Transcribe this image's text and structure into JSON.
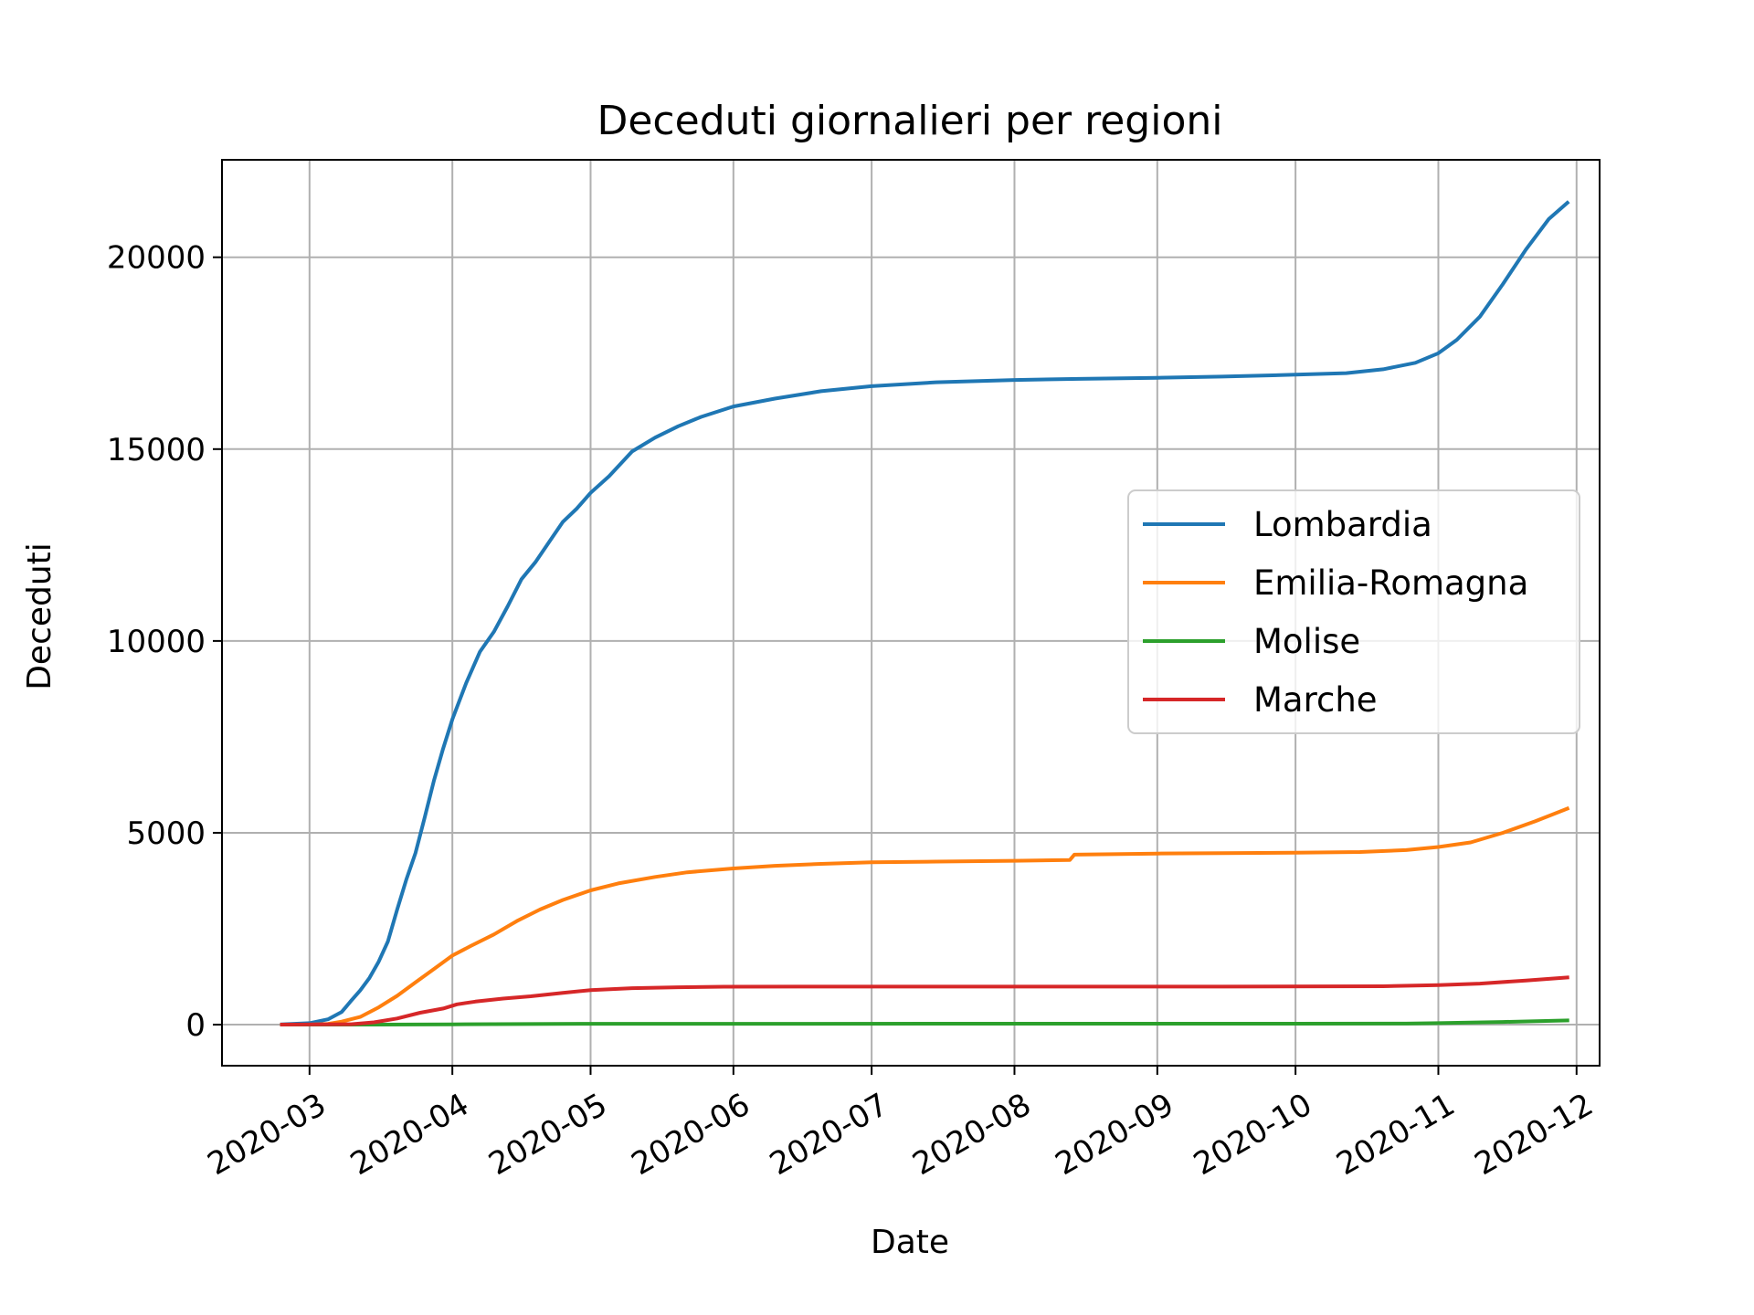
{
  "chart_data": {
    "type": "line",
    "title": "Deceduti giornalieri per regioni",
    "xlabel": "Date",
    "ylabel": "Deceduti",
    "x_axis": {
      "type": "date",
      "range": [
        "2020-02-11",
        "2020-12-06"
      ],
      "ticks": [
        "2020-03-01",
        "2020-04-01",
        "2020-05-01",
        "2020-06-01",
        "2020-07-01",
        "2020-08-01",
        "2020-09-01",
        "2020-10-01",
        "2020-11-01",
        "2020-12-01"
      ],
      "tick_labels": [
        "2020-03",
        "2020-04",
        "2020-05",
        "2020-06",
        "2020-07",
        "2020-08",
        "2020-09",
        "2020-10",
        "2020-11",
        "2020-12"
      ]
    },
    "y_axis": {
      "range": [
        -1070,
        22540
      ],
      "ticks": [
        0,
        5000,
        10000,
        15000,
        20000
      ],
      "tick_labels": [
        "0",
        "5000",
        "10000",
        "15000",
        "20000"
      ]
    },
    "grid": true,
    "legend_position": "center-right",
    "series": [
      {
        "name": "Lombardia",
        "color": "#1f77b4",
        "points": [
          [
            "2020-02-24",
            6
          ],
          [
            "2020-03-01",
            38
          ],
          [
            "2020-03-05",
            140
          ],
          [
            "2020-03-08",
            333
          ],
          [
            "2020-03-10",
            617
          ],
          [
            "2020-03-12",
            890
          ],
          [
            "2020-03-14",
            1218
          ],
          [
            "2020-03-16",
            1640
          ],
          [
            "2020-03-18",
            2168
          ],
          [
            "2020-03-20",
            2994
          ],
          [
            "2020-03-22",
            3776
          ],
          [
            "2020-03-24",
            4474
          ],
          [
            "2020-03-26",
            5402
          ],
          [
            "2020-03-28",
            6360
          ],
          [
            "2020-03-30",
            7199
          ],
          [
            "2020-04-01",
            7960
          ],
          [
            "2020-04-04",
            8905
          ],
          [
            "2020-04-07",
            9722
          ],
          [
            "2020-04-10",
            10238
          ],
          [
            "2020-04-13",
            10901
          ],
          [
            "2020-04-16",
            11608
          ],
          [
            "2020-04-19",
            12050
          ],
          [
            "2020-04-22",
            12579
          ],
          [
            "2020-04-25",
            13106
          ],
          [
            "2020-04-28",
            13449
          ],
          [
            "2020-05-01",
            13860
          ],
          [
            "2020-05-05",
            14294
          ],
          [
            "2020-05-10",
            14937
          ],
          [
            "2020-05-15",
            15299
          ],
          [
            "2020-05-20",
            15596
          ],
          [
            "2020-05-25",
            15840
          ],
          [
            "2020-06-01",
            16112
          ],
          [
            "2020-06-10",
            16317
          ],
          [
            "2020-06-20",
            16510
          ],
          [
            "2020-07-01",
            16640
          ],
          [
            "2020-07-15",
            16742
          ],
          [
            "2020-08-01",
            16802
          ],
          [
            "2020-08-15",
            16830
          ],
          [
            "2020-09-01",
            16860
          ],
          [
            "2020-09-15",
            16890
          ],
          [
            "2020-10-01",
            16940
          ],
          [
            "2020-10-12",
            16980
          ],
          [
            "2020-10-20",
            17080
          ],
          [
            "2020-10-27",
            17250
          ],
          [
            "2020-11-01",
            17500
          ],
          [
            "2020-11-05",
            17850
          ],
          [
            "2020-11-10",
            18450
          ],
          [
            "2020-11-15",
            19300
          ],
          [
            "2020-11-20",
            20200
          ],
          [
            "2020-11-25",
            21000
          ],
          [
            "2020-11-29",
            21420
          ]
        ]
      },
      {
        "name": "Emilia-Romagna",
        "color": "#ff7f0e",
        "points": [
          [
            "2020-02-24",
            0
          ],
          [
            "2020-03-01",
            2
          ],
          [
            "2020-03-05",
            20
          ],
          [
            "2020-03-08",
            80
          ],
          [
            "2020-03-12",
            200
          ],
          [
            "2020-03-16",
            450
          ],
          [
            "2020-03-20",
            750
          ],
          [
            "2020-03-24",
            1100
          ],
          [
            "2020-03-28",
            1450
          ],
          [
            "2020-04-01",
            1800
          ],
          [
            "2020-04-05",
            2050
          ],
          [
            "2020-04-10",
            2350
          ],
          [
            "2020-04-15",
            2700
          ],
          [
            "2020-04-20",
            3000
          ],
          [
            "2020-04-25",
            3250
          ],
          [
            "2020-05-01",
            3500
          ],
          [
            "2020-05-07",
            3680
          ],
          [
            "2020-05-15",
            3850
          ],
          [
            "2020-05-22",
            3970
          ],
          [
            "2020-06-01",
            4070
          ],
          [
            "2020-06-10",
            4140
          ],
          [
            "2020-06-20",
            4190
          ],
          [
            "2020-07-01",
            4230
          ],
          [
            "2020-07-15",
            4250
          ],
          [
            "2020-08-01",
            4270
          ],
          [
            "2020-08-13",
            4290
          ],
          [
            "2020-08-14",
            4430
          ],
          [
            "2020-09-01",
            4460
          ],
          [
            "2020-09-15",
            4470
          ],
          [
            "2020-10-01",
            4480
          ],
          [
            "2020-10-15",
            4500
          ],
          [
            "2020-10-25",
            4550
          ],
          [
            "2020-11-01",
            4630
          ],
          [
            "2020-11-08",
            4750
          ],
          [
            "2020-11-15",
            5000
          ],
          [
            "2020-11-22",
            5300
          ],
          [
            "2020-11-29",
            5630
          ]
        ]
      },
      {
        "name": "Molise",
        "color": "#2ca02c",
        "points": [
          [
            "2020-02-24",
            0
          ],
          [
            "2020-03-15",
            0
          ],
          [
            "2020-04-01",
            8
          ],
          [
            "2020-05-01",
            22
          ],
          [
            "2020-06-01",
            23
          ],
          [
            "2020-08-01",
            24
          ],
          [
            "2020-10-01",
            25
          ],
          [
            "2020-10-25",
            28
          ],
          [
            "2020-11-01",
            40
          ],
          [
            "2020-11-15",
            70
          ],
          [
            "2020-11-29",
            110
          ]
        ]
      },
      {
        "name": "Marche",
        "color": "#d62728",
        "points": [
          [
            "2020-02-24",
            0
          ],
          [
            "2020-03-10",
            10
          ],
          [
            "2020-03-15",
            60
          ],
          [
            "2020-03-20",
            160
          ],
          [
            "2020-03-25",
            310
          ],
          [
            "2020-03-30",
            420
          ],
          [
            "2020-04-02",
            530
          ],
          [
            "2020-04-06",
            600
          ],
          [
            "2020-04-12",
            680
          ],
          [
            "2020-04-18",
            740
          ],
          [
            "2020-04-25",
            830
          ],
          [
            "2020-05-01",
            900
          ],
          [
            "2020-05-10",
            950
          ],
          [
            "2020-05-20",
            975
          ],
          [
            "2020-05-30",
            988
          ],
          [
            "2020-06-15",
            990
          ],
          [
            "2020-08-01",
            990
          ],
          [
            "2020-09-15",
            992
          ],
          [
            "2020-10-20",
            1000
          ],
          [
            "2020-11-01",
            1030
          ],
          [
            "2020-11-10",
            1070
          ],
          [
            "2020-11-20",
            1150
          ],
          [
            "2020-11-29",
            1230
          ]
        ]
      }
    ]
  }
}
